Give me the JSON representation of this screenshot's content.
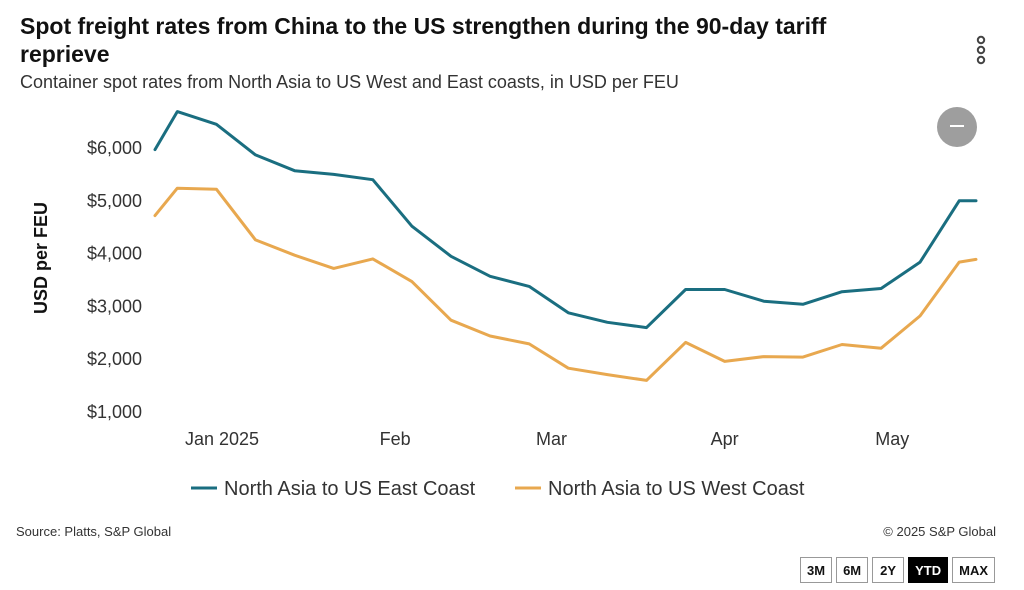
{
  "header": {
    "title": "Spot freight rates from China to the US strengthen during the 90-day tariff reprieve",
    "subtitle": "Container spot rates from North Asia to US West and East coasts, in USD per FEU",
    "menu_icon": "vertical-ellipsis-icon",
    "zoom_out_icon": "minus-icon"
  },
  "chart_data": {
    "type": "line",
    "title": "Spot freight rates from China to the US strengthen during the 90-day tariff reprieve",
    "subtitle": "Container spot rates from North Asia to US West and East coasts, in USD per FEU",
    "xlabel": "",
    "ylabel": "USD per FEU",
    "ylim": [
      1000,
      6700
    ],
    "xlim": [
      "2024-12-15",
      "2025-05-20"
    ],
    "yticks": [
      1000,
      2000,
      3000,
      4000,
      5000,
      6000
    ],
    "ytick_labels": [
      "$1,000",
      "$2,000",
      "$3,000",
      "$4,000",
      "$5,000",
      "$6,000"
    ],
    "xticks": [
      "2025-01-01",
      "2025-02-01",
      "2025-03-01",
      "2025-04-01",
      "2025-05-01"
    ],
    "xtick_labels": [
      "Jan 2025",
      "Feb",
      "Mar",
      "Apr",
      "May"
    ],
    "grid": false,
    "legend": "bottom",
    "x": [
      "2024-12-20",
      "2024-12-24",
      "2024-12-31",
      "2025-01-07",
      "2025-01-14",
      "2025-01-21",
      "2025-01-28",
      "2025-02-04",
      "2025-02-11",
      "2025-02-18",
      "2025-02-25",
      "2025-03-04",
      "2025-03-11",
      "2025-03-18",
      "2025-03-25",
      "2025-04-01",
      "2025-04-08",
      "2025-04-15",
      "2025-04-22",
      "2025-04-29",
      "2025-05-06",
      "2025-05-13",
      "2025-05-16"
    ],
    "series": [
      {
        "name": "North Asia to US East Coast",
        "color": "#1a6e80",
        "values": [
          5950,
          6670,
          6430,
          5850,
          5550,
          5480,
          5380,
          4500,
          3930,
          3550,
          3360,
          2860,
          2680,
          2580,
          3300,
          3300,
          3080,
          3020,
          3260,
          3320,
          3820,
          4980,
          4980
        ]
      },
      {
        "name": "North Asia to US West Coast",
        "color": "#e8a84f",
        "values": [
          4700,
          5220,
          5200,
          4240,
          3950,
          3700,
          3880,
          3450,
          2720,
          2420,
          2270,
          1810,
          1690,
          1580,
          2300,
          1940,
          2030,
          2020,
          2260,
          2190,
          2800,
          3820,
          3870
        ]
      }
    ]
  },
  "footer": {
    "source": "Source: Platts, S&P Global",
    "copyright": "© 2025 S&P Global"
  },
  "range_buttons": [
    {
      "label": "3M",
      "active": false
    },
    {
      "label": "6M",
      "active": false
    },
    {
      "label": "2Y",
      "active": false
    },
    {
      "label": "YTD",
      "active": true
    },
    {
      "label": "MAX",
      "active": false
    }
  ]
}
